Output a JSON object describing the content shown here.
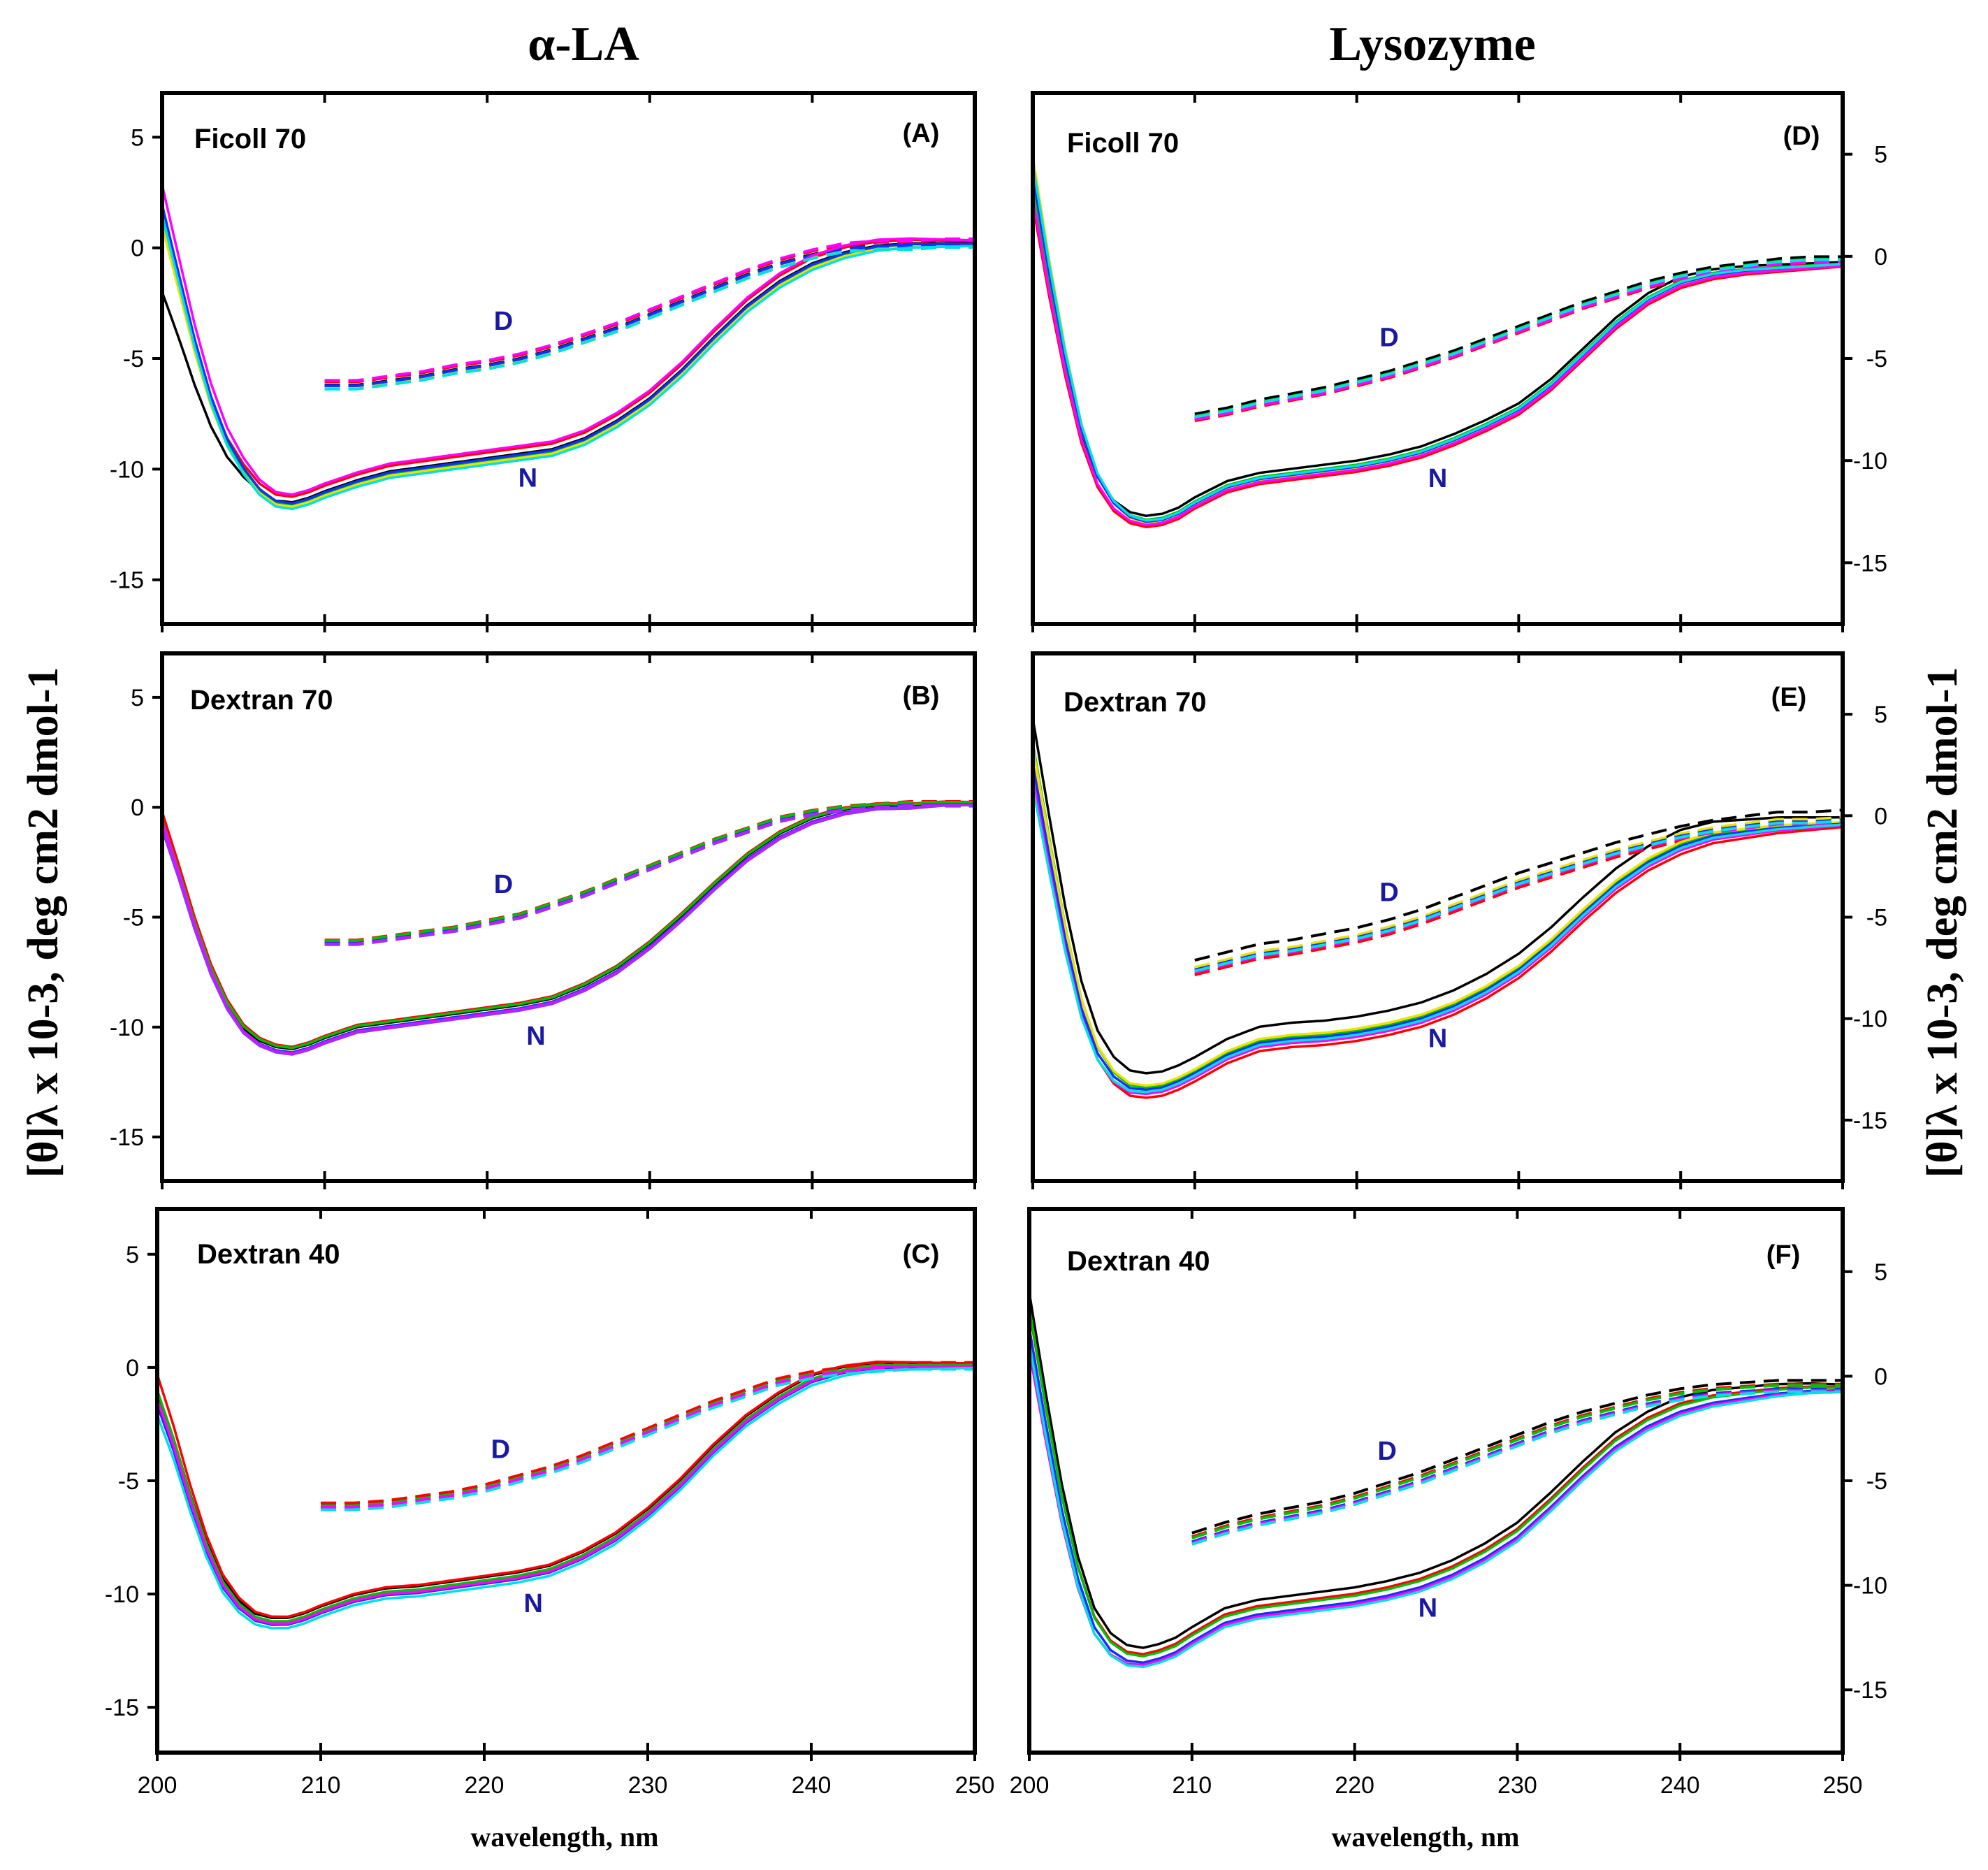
{
  "figure": {
    "column_titles": [
      "α-LA",
      "Lysozyme"
    ],
    "ylabel_left": "[θ]λ x 10-3, deg cm2 dmol-1",
    "ylabel_right": "[θ]λ x 10-3, deg cm2 dmol-1",
    "xlabel": "wavelength, nm",
    "colors": {
      "black": "#000000",
      "red": "#ff0000",
      "green": "#00c000",
      "yellow": "#f0e000",
      "blue": "#1030ff",
      "magenta": "#ff00ff",
      "cyan": "#00e0e0",
      "purple": "#9b30ff",
      "label": "#1a1aa0"
    }
  },
  "chart_data": [
    {
      "panel": "A",
      "type": "line",
      "title": "Ficoll 70",
      "letter": "(A)",
      "xlim": [
        200,
        250
      ],
      "ylim": [
        -17,
        7
      ],
      "xticks": [
        200,
        210,
        220,
        230,
        240,
        250
      ],
      "yticks": [
        5,
        0,
        -5,
        -10,
        -15
      ],
      "xlabel": "wavelength, nm",
      "labels": [
        {
          "text": "D",
          "x": 221,
          "y": -3.7
        },
        {
          "text": "N",
          "x": 222.5,
          "y": -10.8
        }
      ],
      "native": {
        "x": [
          200,
          201,
          202,
          203,
          204,
          205,
          206,
          207,
          208,
          209,
          210,
          212,
          214,
          216,
          218,
          220,
          222,
          224,
          226,
          228,
          230,
          232,
          234,
          236,
          238,
          240,
          242,
          244,
          246,
          248,
          250
        ],
        "y": [
          1.0,
          -1.8,
          -4.6,
          -7.0,
          -8.8,
          -10.0,
          -10.9,
          -11.4,
          -11.5,
          -11.3,
          -11.0,
          -10.5,
          -10.1,
          -9.9,
          -9.7,
          -9.5,
          -9.3,
          -9.1,
          -8.6,
          -7.8,
          -6.8,
          -5.5,
          -4.0,
          -2.6,
          -1.5,
          -0.7,
          -0.2,
          0.1,
          0.2,
          0.2,
          0.2
        ]
      },
      "denatured": {
        "x": [
          210,
          212,
          214,
          216,
          218,
          220,
          222,
          224,
          226,
          228,
          230,
          232,
          234,
          236,
          238,
          240,
          242,
          244,
          246,
          248,
          250
        ],
        "y": [
          -6.2,
          -6.2,
          -6.0,
          -5.8,
          -5.5,
          -5.3,
          -5.0,
          -4.6,
          -4.1,
          -3.6,
          -3.0,
          -2.4,
          -1.8,
          -1.2,
          -0.7,
          -0.3,
          0.0,
          0.1,
          0.1,
          0.2,
          0.2
        ]
      },
      "series": [
        {
          "name": "black",
          "offset": 0.0,
          "start": -2.0
        },
        {
          "name": "red",
          "offset": 0.25,
          "start": 0.8
        },
        {
          "name": "green",
          "offset": -0.1,
          "start": 1.5
        },
        {
          "name": "yellow",
          "offset": -0.2,
          "start": 1.2
        },
        {
          "name": "blue",
          "offset": -0.05,
          "start": 2.0
        },
        {
          "name": "magenta",
          "offset": 0.35,
          "start": 2.5
        },
        {
          "name": "cyan",
          "offset": -0.3,
          "start": 1.8
        }
      ]
    },
    {
      "panel": "B",
      "type": "line",
      "title": "Dextran 70",
      "letter": "(B)",
      "xlim": [
        200,
        250
      ],
      "ylim": [
        -17,
        7
      ],
      "xticks": [
        200,
        210,
        220,
        230,
        240,
        250
      ],
      "yticks": [
        5,
        0,
        -5,
        -10,
        -15
      ],
      "xlabel": "wavelength, nm",
      "labels": [
        {
          "text": "D",
          "x": 221,
          "y": -3.9
        },
        {
          "text": "N",
          "x": 223,
          "y": -10.8
        }
      ],
      "native": {
        "x": [
          200,
          201,
          202,
          203,
          204,
          205,
          206,
          207,
          208,
          209,
          210,
          212,
          214,
          216,
          218,
          220,
          222,
          224,
          226,
          228,
          230,
          232,
          234,
          236,
          238,
          240,
          242,
          244,
          246,
          248,
          250
        ],
        "y": [
          -0.5,
          -2.8,
          -5.2,
          -7.3,
          -8.9,
          -10.0,
          -10.6,
          -10.9,
          -11.0,
          -10.8,
          -10.5,
          -10.0,
          -9.8,
          -9.6,
          -9.4,
          -9.2,
          -9.0,
          -8.7,
          -8.1,
          -7.3,
          -6.2,
          -4.9,
          -3.5,
          -2.2,
          -1.2,
          -0.5,
          -0.1,
          0.1,
          0.1,
          0.2,
          0.2
        ]
      },
      "denatured": {
        "x": [
          210,
          212,
          214,
          216,
          218,
          220,
          222,
          224,
          226,
          228,
          230,
          232,
          234,
          236,
          238,
          240,
          242,
          244,
          246,
          248,
          250
        ],
        "y": [
          -6.1,
          -6.1,
          -5.9,
          -5.7,
          -5.5,
          -5.2,
          -4.9,
          -4.4,
          -3.9,
          -3.3,
          -2.7,
          -2.1,
          -1.5,
          -1.0,
          -0.5,
          -0.2,
          0.0,
          0.1,
          0.2,
          0.2,
          0.2
        ]
      },
      "series": [
        {
          "name": "black",
          "offset": 0.0,
          "start": -1.0
        },
        {
          "name": "red",
          "offset": 0.1,
          "start": -0.3
        },
        {
          "name": "green",
          "offset": 0.05,
          "start": -0.6
        },
        {
          "name": "blue",
          "offset": -0.15,
          "start": -0.8
        },
        {
          "name": "magenta",
          "offset": -0.2,
          "start": -0.4
        },
        {
          "name": "purple",
          "offset": -0.25,
          "start": -0.7
        }
      ]
    },
    {
      "panel": "C",
      "type": "line",
      "title": "Dextran 40",
      "letter": "(C)",
      "xlim": [
        200,
        250
      ],
      "ylim": [
        -17,
        7
      ],
      "xticks": [
        200,
        210,
        220,
        230,
        240,
        250
      ],
      "yticks": [
        5,
        0,
        -5,
        -10,
        -15
      ],
      "xlabel": "wavelength, nm",
      "labels": [
        {
          "text": "D",
          "x": 221,
          "y": -4.0
        },
        {
          "text": "N",
          "x": 223,
          "y": -10.8
        }
      ],
      "native": {
        "x": [
          200,
          201,
          202,
          203,
          204,
          205,
          206,
          207,
          208,
          209,
          210,
          212,
          214,
          216,
          218,
          220,
          222,
          224,
          226,
          228,
          230,
          232,
          234,
          236,
          238,
          240,
          242,
          244,
          246,
          248,
          250
        ],
        "y": [
          -0.8,
          -3.0,
          -5.5,
          -7.7,
          -9.4,
          -10.4,
          -11.0,
          -11.2,
          -11.2,
          -11.0,
          -10.7,
          -10.2,
          -9.9,
          -9.8,
          -9.6,
          -9.4,
          -9.2,
          -8.9,
          -8.3,
          -7.5,
          -6.4,
          -5.1,
          -3.6,
          -2.3,
          -1.3,
          -0.5,
          -0.1,
          0.1,
          0.1,
          0.1,
          0.1
        ]
      },
      "denatured": {
        "x": [
          210,
          212,
          214,
          216,
          218,
          220,
          222,
          224,
          226,
          228,
          230,
          232,
          234,
          236,
          238,
          240,
          242,
          244,
          246,
          248,
          250
        ],
        "y": [
          -6.1,
          -6.1,
          -6.0,
          -5.8,
          -5.6,
          -5.3,
          -4.9,
          -4.5,
          -4.0,
          -3.4,
          -2.8,
          -2.2,
          -1.6,
          -1.1,
          -0.6,
          -0.3,
          -0.1,
          0.0,
          0.1,
          0.1,
          0.1
        ]
      },
      "series": [
        {
          "name": "black",
          "offset": 0.15,
          "start": -1.2
        },
        {
          "name": "red",
          "offset": 0.2,
          "start": -0.5
        },
        {
          "name": "green",
          "offset": 0.0,
          "start": -1.0
        },
        {
          "name": "blue",
          "offset": -0.15,
          "start": -1.5
        },
        {
          "name": "magenta",
          "offset": -0.1,
          "start": -1.3
        },
        {
          "name": "cyan",
          "offset": -0.3,
          "start": -1.8
        }
      ]
    },
    {
      "panel": "D",
      "type": "line",
      "title": "Ficoll 70",
      "letter": "(D)",
      "xlim": [
        200,
        250
      ],
      "ylim": [
        -18,
        8
      ],
      "xticks": [
        200,
        210,
        220,
        230,
        240,
        250
      ],
      "yticks": [
        5,
        0,
        -5,
        -10,
        -15
      ],
      "xlabel": "wavelength, nm",
      "labels": [
        {
          "text": "D",
          "x": 222,
          "y": -4.4
        },
        {
          "text": "N",
          "x": 225,
          "y": -11.3
        }
      ],
      "native": {
        "x": [
          200,
          201,
          202,
          203,
          204,
          205,
          206,
          207,
          208,
          209,
          210,
          212,
          214,
          216,
          218,
          220,
          222,
          224,
          226,
          228,
          230,
          232,
          234,
          236,
          238,
          240,
          242,
          244,
          246,
          248,
          250
        ],
        "y": [
          3.0,
          -1.5,
          -5.5,
          -8.8,
          -11.0,
          -12.2,
          -12.8,
          -13.0,
          -12.9,
          -12.6,
          -12.1,
          -11.3,
          -10.9,
          -10.7,
          -10.5,
          -10.3,
          -10.0,
          -9.6,
          -9.0,
          -8.3,
          -7.5,
          -6.3,
          -4.8,
          -3.3,
          -2.1,
          -1.3,
          -0.9,
          -0.7,
          -0.6,
          -0.5,
          -0.4
        ]
      },
      "denatured": {
        "x": [
          210,
          212,
          214,
          216,
          218,
          220,
          222,
          224,
          226,
          228,
          230,
          232,
          234,
          236,
          238,
          240,
          242,
          244,
          246,
          248,
          250
        ],
        "y": [
          -7.9,
          -7.6,
          -7.2,
          -6.9,
          -6.6,
          -6.2,
          -5.8,
          -5.3,
          -4.8,
          -4.2,
          -3.6,
          -3.0,
          -2.4,
          -1.9,
          -1.4,
          -1.0,
          -0.7,
          -0.5,
          -0.3,
          -0.2,
          -0.2
        ]
      },
      "series": [
        {
          "name": "black",
          "offset": 0.3,
          "start": 2.5
        },
        {
          "name": "red",
          "offset": -0.25,
          "start": 2.8
        },
        {
          "name": "green",
          "offset": 0.1,
          "start": 3.5
        },
        {
          "name": "yellow",
          "offset": -0.1,
          "start": 5.0
        },
        {
          "name": "blue",
          "offset": 0.0,
          "start": 4.0
        },
        {
          "name": "magenta",
          "offset": -0.15,
          "start": 3.0
        },
        {
          "name": "cyan",
          "offset": 0.05,
          "start": 4.5
        }
      ]
    },
    {
      "panel": "E",
      "type": "line",
      "title": "Dextran 70",
      "letter": "(E)",
      "xlim": [
        200,
        250
      ],
      "ylim": [
        -18,
        8
      ],
      "xticks": [
        200,
        210,
        220,
        230,
        240,
        250
      ],
      "yticks": [
        5,
        0,
        -5,
        -10,
        -15
      ],
      "xlabel": "wavelength, nm",
      "labels": [
        {
          "text": "D",
          "x": 222,
          "y": -4.2
        },
        {
          "text": "N",
          "x": 225,
          "y": -11.4
        }
      ],
      "native": {
        "x": [
          200,
          201,
          202,
          203,
          204,
          205,
          206,
          207,
          208,
          209,
          210,
          212,
          214,
          216,
          218,
          220,
          222,
          224,
          226,
          228,
          230,
          232,
          234,
          236,
          238,
          240,
          242,
          244,
          246,
          248,
          250
        ],
        "y": [
          3.0,
          -1.5,
          -5.8,
          -9.3,
          -11.6,
          -12.8,
          -13.4,
          -13.5,
          -13.4,
          -13.1,
          -12.7,
          -11.8,
          -11.2,
          -11.0,
          -10.9,
          -10.7,
          -10.4,
          -10.0,
          -9.4,
          -8.6,
          -7.6,
          -6.3,
          -4.8,
          -3.4,
          -2.3,
          -1.5,
          -1.0,
          -0.8,
          -0.6,
          -0.5,
          -0.4
        ]
      },
      "denatured": {
        "x": [
          210,
          212,
          214,
          216,
          218,
          220,
          222,
          224,
          226,
          228,
          230,
          232,
          234,
          236,
          238,
          240,
          242,
          244,
          246,
          248,
          250
        ],
        "y": [
          -7.6,
          -7.2,
          -6.8,
          -6.6,
          -6.3,
          -6.0,
          -5.6,
          -5.1,
          -4.5,
          -3.9,
          -3.3,
          -2.8,
          -2.3,
          -1.8,
          -1.4,
          -1.0,
          -0.7,
          -0.5,
          -0.3,
          -0.3,
          -0.2
        ]
      },
      "series": [
        {
          "name": "black",
          "offset": 0.8,
          "start": 4.0
        },
        {
          "name": "red",
          "offset": -0.4,
          "start": 3.0
        },
        {
          "name": "green",
          "offset": 0.1,
          "start": 3.5
        },
        {
          "name": "yellow",
          "offset": 0.2,
          "start": 3.2
        },
        {
          "name": "blue",
          "offset": 0.0,
          "start": 2.5
        },
        {
          "name": "magenta",
          "offset": -0.2,
          "start": 2.0
        },
        {
          "name": "cyan",
          "offset": -0.1,
          "start": 1.5
        }
      ]
    },
    {
      "panel": "F",
      "type": "line",
      "title": "Dextran 40",
      "letter": "(F)",
      "xlim": [
        200,
        250
      ],
      "ylim": [
        -18,
        8
      ],
      "xticks": [
        200,
        210,
        220,
        230,
        240,
        250
      ],
      "yticks": [
        5,
        0,
        -5,
        -10,
        -15
      ],
      "xlabel": "wavelength, nm",
      "labels": [
        {
          "text": "D",
          "x": 222,
          "y": -4.0
        },
        {
          "text": "N",
          "x": 224.5,
          "y": -11.5
        }
      ],
      "native": {
        "x": [
          200,
          201,
          202,
          203,
          204,
          205,
          206,
          207,
          208,
          209,
          210,
          212,
          214,
          216,
          218,
          220,
          222,
          224,
          226,
          228,
          230,
          232,
          234,
          236,
          238,
          240,
          242,
          244,
          246,
          248,
          250
        ],
        "y": [
          2.5,
          -2.0,
          -6.2,
          -9.5,
          -11.8,
          -12.9,
          -13.4,
          -13.5,
          -13.3,
          -13.0,
          -12.5,
          -11.6,
          -11.2,
          -11.0,
          -10.8,
          -10.6,
          -10.3,
          -9.9,
          -9.3,
          -8.5,
          -7.5,
          -6.1,
          -4.6,
          -3.2,
          -2.2,
          -1.5,
          -1.1,
          -0.9,
          -0.7,
          -0.6,
          -0.6
        ]
      },
      "denatured": {
        "x": [
          210,
          212,
          214,
          216,
          218,
          220,
          222,
          224,
          226,
          228,
          230,
          232,
          234,
          236,
          238,
          240,
          242,
          244,
          246,
          248,
          250
        ],
        "y": [
          -7.8,
          -7.3,
          -6.9,
          -6.6,
          -6.3,
          -5.9,
          -5.4,
          -4.9,
          -4.3,
          -3.7,
          -3.1,
          -2.5,
          -2.0,
          -1.6,
          -1.2,
          -0.9,
          -0.7,
          -0.6,
          -0.5,
          -0.5,
          -0.5
        ]
      },
      "series": [
        {
          "name": "black",
          "offset": 0.5,
          "start": 3.5
        },
        {
          "name": "red",
          "offset": 0.2,
          "start": 3.0
        },
        {
          "name": "green",
          "offset": 0.1,
          "start": 3.2
        },
        {
          "name": "blue",
          "offset": -0.2,
          "start": 2.5
        },
        {
          "name": "magenta",
          "offset": -0.3,
          "start": 1.5
        },
        {
          "name": "cyan",
          "offset": -0.4,
          "start": 2.0
        }
      ]
    }
  ]
}
